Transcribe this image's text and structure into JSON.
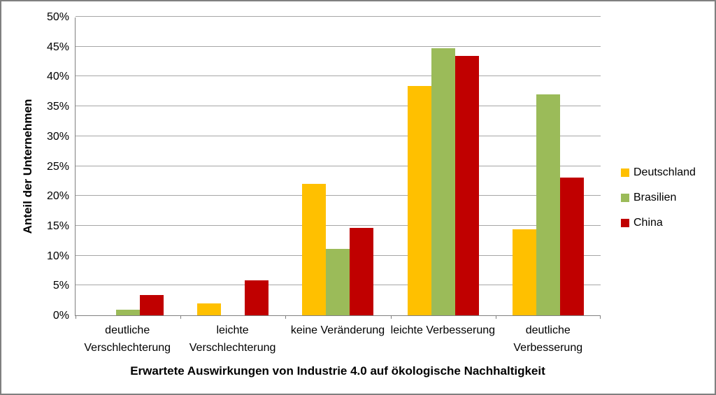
{
  "chart_data": {
    "type": "bar",
    "title": "",
    "xlabel": "Erwartete Auswirkungen von Industrie 4.0 auf ökologische Nachhaltigkeit",
    "ylabel": "Anteil der Unternehmen",
    "categories": [
      "deutliche Verschlechterung",
      "leichte Verschlechterung",
      "keine Veränderung",
      "leichte Verbesserung",
      "deutliche Verbesserung"
    ],
    "series": [
      {
        "name": "Deutschland",
        "color": "#FFC000",
        "values": [
          0,
          2.0,
          22.1,
          38.5,
          14.4
        ]
      },
      {
        "name": "Brasilien",
        "color": "#9BBB59",
        "values": [
          0.9,
          0,
          11.2,
          44.8,
          37.1
        ]
      },
      {
        "name": "China",
        "color": "#C00000",
        "values": [
          3.4,
          5.9,
          14.7,
          43.6,
          23.1
        ]
      }
    ],
    "ylim": [
      0,
      50
    ],
    "ytick_step": 5,
    "ytick_suffix": "%",
    "grid": true,
    "legend_position": "right",
    "colors": {
      "gridline": "#A6A6A6",
      "axis": "#808080",
      "border": "#808080",
      "background": "#FFFFFF",
      "text": "#000000"
    }
  }
}
